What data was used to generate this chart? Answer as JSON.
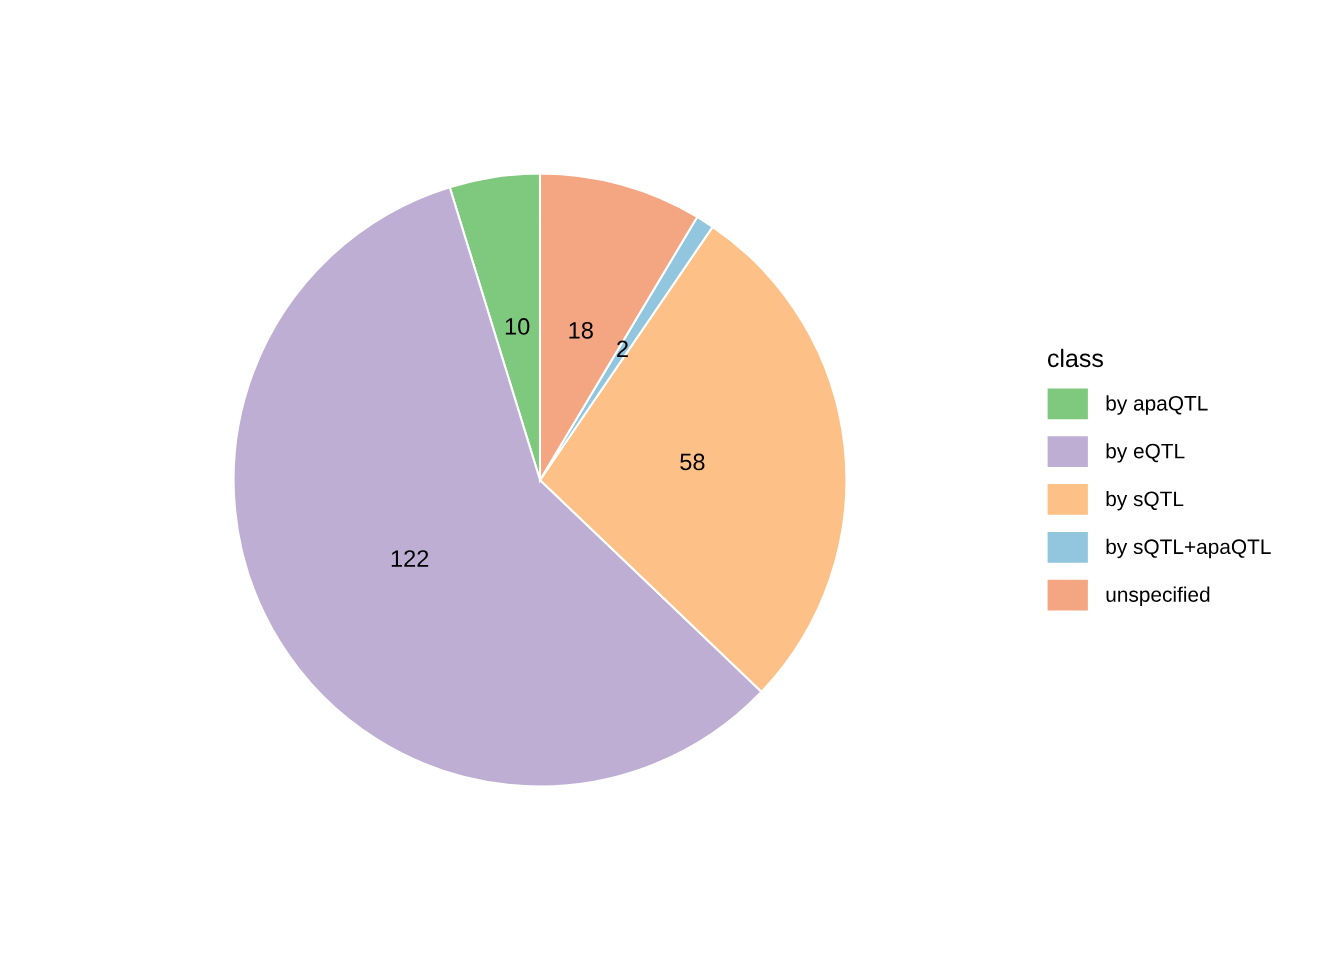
{
  "chart_data": {
    "type": "pie",
    "legend_title": "class",
    "categories": [
      "by apaQTL",
      "by eQTL",
      "by sQTL",
      "by sQTL+apaQTL",
      "unspecified"
    ],
    "values": [
      10,
      122,
      58,
      2,
      18
    ],
    "colors": [
      "#7fc97f",
      "#beaed4",
      "#fdc086",
      "#92c5de",
      "#f4a582"
    ],
    "data_labels": true,
    "legend": "right"
  }
}
